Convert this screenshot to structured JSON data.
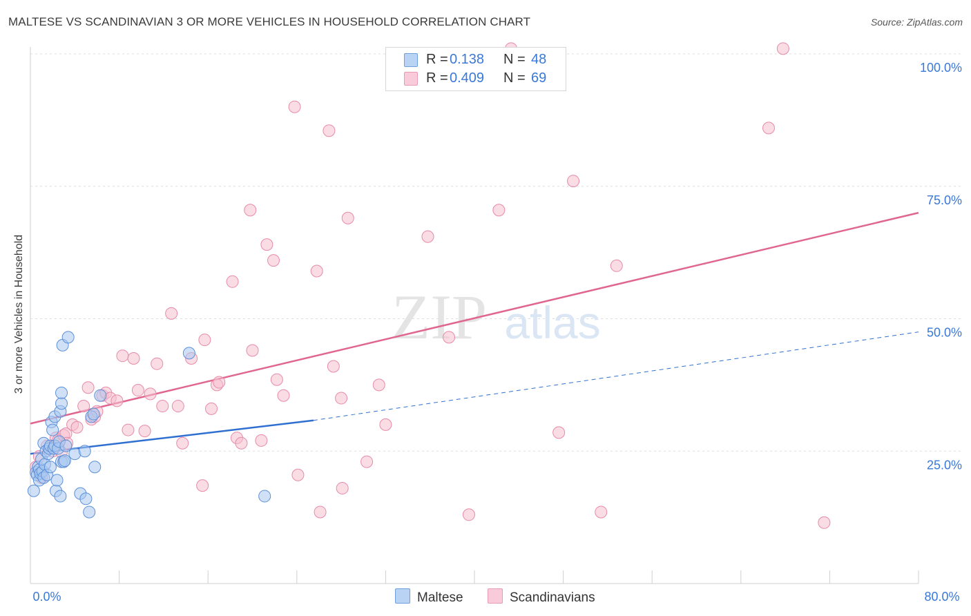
{
  "title": "MALTESE VS SCANDINAVIAN 3 OR MORE VEHICLES IN HOUSEHOLD CORRELATION CHART",
  "source": "Source: ZipAtlas.com",
  "watermark": {
    "zip": "ZIP",
    "atlas": "atlas"
  },
  "legend": {
    "r_label": "R =",
    "n_label": "N =",
    "rows": [
      {
        "r": "0.138",
        "n": "48"
      },
      {
        "r": "0.409",
        "n": "69"
      }
    ]
  },
  "colors": {
    "maltese_fill": "#a9c8f0",
    "maltese_stroke": "#5b8fd8",
    "maltese_line": "#2e6fd0",
    "scand_fill": "#f6c0d0",
    "scand_stroke": "#e68aa8",
    "scand_line": "#e0668f",
    "axis_text": "#3a78d8",
    "grid": "#dddddd"
  },
  "chart_data": {
    "type": "scatter",
    "title": "MALTESE VS SCANDINAVIAN 3 OR MORE VEHICLES IN HOUSEHOLD CORRELATION CHART",
    "xlabel": "",
    "ylabel": "3 or more Vehicles in Household",
    "xlim": [
      0,
      80
    ],
    "ylim": [
      0,
      100
    ],
    "x_tick_labels": [
      "0.0%",
      "80.0%"
    ],
    "y_ticks": [
      25,
      50,
      75,
      100
    ],
    "y_tick_labels": [
      "25.0%",
      "50.0%",
      "75.0%",
      "100.0%"
    ],
    "grid": true,
    "series": [
      {
        "name": "Maltese",
        "r": 0.138,
        "n": 48,
        "trend": {
          "x0": 0,
          "y0": 24.5,
          "x1": 25.5,
          "y1": 30.8,
          "dash_x1": 80,
          "dash_y1": 47.5
        },
        "points": [
          [
            0.3,
            17.5
          ],
          [
            0.5,
            21.0
          ],
          [
            0.6,
            20.5
          ],
          [
            0.7,
            22.0
          ],
          [
            0.8,
            19.5
          ],
          [
            0.8,
            21.5
          ],
          [
            0.9,
            20.8
          ],
          [
            1.0,
            23.5
          ],
          [
            1.1,
            21.2
          ],
          [
            1.2,
            20.0
          ],
          [
            1.2,
            26.5
          ],
          [
            1.3,
            22.5
          ],
          [
            1.4,
            25.0
          ],
          [
            1.5,
            20.5
          ],
          [
            1.6,
            24.5
          ],
          [
            1.7,
            25.5
          ],
          [
            1.8,
            26.0
          ],
          [
            1.8,
            22.0
          ],
          [
            1.9,
            30.5
          ],
          [
            2.0,
            29.0
          ],
          [
            2.1,
            25.5
          ],
          [
            2.2,
            26.0
          ],
          [
            2.2,
            31.5
          ],
          [
            2.3,
            17.5
          ],
          [
            2.4,
            19.5
          ],
          [
            2.5,
            25.5
          ],
          [
            2.6,
            26.8
          ],
          [
            2.7,
            32.5
          ],
          [
            2.7,
            16.5
          ],
          [
            2.8,
            34.0
          ],
          [
            2.8,
            23.0
          ],
          [
            2.8,
            36.0
          ],
          [
            2.9,
            45.0
          ],
          [
            3.0,
            23.0
          ],
          [
            3.2,
            26.0
          ],
          [
            3.4,
            46.5
          ],
          [
            4.0,
            24.5
          ],
          [
            4.5,
            17.0
          ],
          [
            4.9,
            25.0
          ],
          [
            5.0,
            16.0
          ],
          [
            5.3,
            13.5
          ],
          [
            5.5,
            31.5
          ],
          [
            5.7,
            32.0
          ],
          [
            5.8,
            22.0
          ],
          [
            6.3,
            35.5
          ],
          [
            14.3,
            43.5
          ],
          [
            21.1,
            16.5
          ],
          [
            3.1,
            23.2
          ]
        ]
      },
      {
        "name": "Scandinavians",
        "r": 0.409,
        "n": 69,
        "trend": {
          "x0": 0,
          "y0": 30.2,
          "x1": 80,
          "y1": 70.0
        },
        "points": [
          [
            0.5,
            22.0
          ],
          [
            0.8,
            24.0
          ],
          [
            1.0,
            20.0
          ],
          [
            1.5,
            26.0
          ],
          [
            2.0,
            25.0
          ],
          [
            2.3,
            27.5
          ],
          [
            2.5,
            27.0
          ],
          [
            2.8,
            24.8
          ],
          [
            3.0,
            28.0
          ],
          [
            3.2,
            28.3
          ],
          [
            3.3,
            26.5
          ],
          [
            3.8,
            30.0
          ],
          [
            4.2,
            29.5
          ],
          [
            4.8,
            33.5
          ],
          [
            5.2,
            37.0
          ],
          [
            5.5,
            31.0
          ],
          [
            5.8,
            31.5
          ],
          [
            6.0,
            32.5
          ],
          [
            6.5,
            35.5
          ],
          [
            6.8,
            36.0
          ],
          [
            7.2,
            35.0
          ],
          [
            7.8,
            34.5
          ],
          [
            8.3,
            43.0
          ],
          [
            8.8,
            29.0
          ],
          [
            9.3,
            42.5
          ],
          [
            9.7,
            36.5
          ],
          [
            10.3,
            28.8
          ],
          [
            10.8,
            35.8
          ],
          [
            11.4,
            41.5
          ],
          [
            11.9,
            33.5
          ],
          [
            12.7,
            51.0
          ],
          [
            13.3,
            33.5
          ],
          [
            13.7,
            26.5
          ],
          [
            14.5,
            42.5
          ],
          [
            15.5,
            18.5
          ],
          [
            15.7,
            46.0
          ],
          [
            16.3,
            33.0
          ],
          [
            16.8,
            37.5
          ],
          [
            17.0,
            38.0
          ],
          [
            18.2,
            57.0
          ],
          [
            18.6,
            27.5
          ],
          [
            19.0,
            26.5
          ],
          [
            19.8,
            70.5
          ],
          [
            20.0,
            44.0
          ],
          [
            20.8,
            27.0
          ],
          [
            21.3,
            64.0
          ],
          [
            21.9,
            61.0
          ],
          [
            22.2,
            38.5
          ],
          [
            22.8,
            35.5
          ],
          [
            23.8,
            90.0
          ],
          [
            24.1,
            20.5
          ],
          [
            25.8,
            59.0
          ],
          [
            26.1,
            13.5
          ],
          [
            26.9,
            85.5
          ],
          [
            27.3,
            41.0
          ],
          [
            28.0,
            35.0
          ],
          [
            28.1,
            18.0
          ],
          [
            28.6,
            69.0
          ],
          [
            30.3,
            23.0
          ],
          [
            31.4,
            37.5
          ],
          [
            32.0,
            30.0
          ],
          [
            35.8,
            65.5
          ],
          [
            37.7,
            46.5
          ],
          [
            39.5,
            13.0
          ],
          [
            42.2,
            70.5
          ],
          [
            47.6,
            28.5
          ],
          [
            48.9,
            76.0
          ],
          [
            51.4,
            13.5
          ],
          [
            52.8,
            60.0
          ]
        ]
      }
    ],
    "extra_points_scandinavians_top": [
      [
        43.3,
        101.0
      ],
      [
        67.8,
        101.0
      ],
      [
        66.5,
        86.0
      ],
      [
        71.5,
        11.5
      ]
    ]
  }
}
